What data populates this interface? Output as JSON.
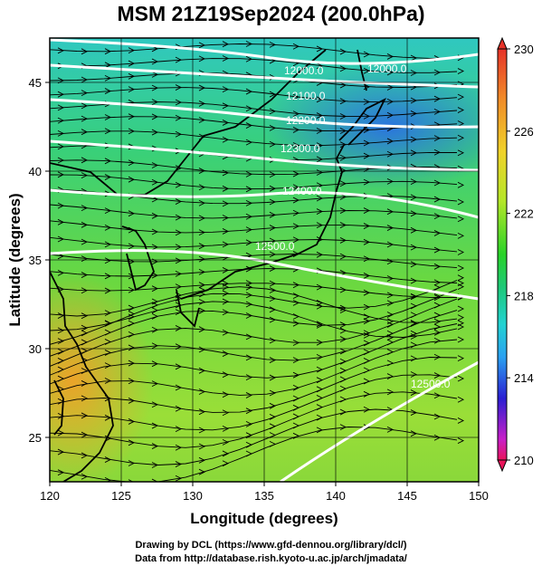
{
  "title": "MSM 21Z19Sep2024 (200.0hPa)",
  "credits": {
    "line1": "Drawing by DCL (https://www.gfd-dennou.org/library/dcl/)",
    "line2": "Data from http://database.rish.kyoto-u.ac.jp/arch/jmadata/"
  },
  "map": {
    "xlabel": "Longitude (degrees)",
    "ylabel": "Latitude  (degrees)",
    "xlim": [
      120,
      150
    ],
    "ylim": [
      22.5,
      47.5
    ],
    "xticks": [
      "120",
      "125",
      "130",
      "135",
      "140",
      "145",
      "150"
    ],
    "yticks": [
      "25",
      "30",
      "35",
      "40",
      "45"
    ],
    "grid": true
  },
  "colorbar": {
    "range": [
      210,
      230
    ],
    "labels": [
      "230",
      "226",
      "222",
      "218",
      "214",
      "210"
    ],
    "colors": [
      "#e8145a",
      "#c81ec8",
      "#2a1ed2",
      "#2aa0f0",
      "#22d2d2",
      "#1ec878",
      "#28d228",
      "#b4e628",
      "#f0d22a",
      "#f08a28",
      "#e63228"
    ]
  },
  "contours": {
    "labels": [
      "12000.0",
      "12000.0",
      "12100.0",
      "12200.0",
      "12300.0",
      "12400.0",
      "12500.0",
      "12500.0"
    ]
  }
}
